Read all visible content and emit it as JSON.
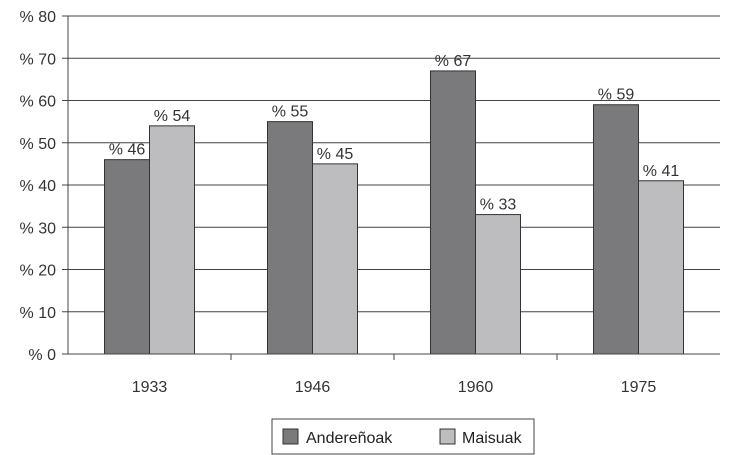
{
  "chart_data": {
    "type": "bar",
    "categories": [
      "1933",
      "1946",
      "1960",
      "1975"
    ],
    "series": [
      {
        "name": "Andereñoak",
        "values": [
          46,
          55,
          67,
          59
        ],
        "labels": [
          "% 46",
          "% 55",
          "% 67",
          "% 59"
        ],
        "color": "#7a7a7c"
      },
      {
        "name": "Maisuak",
        "values": [
          54,
          45,
          33,
          41
        ],
        "labels": [
          "% 54",
          "% 45",
          "% 33",
          "% 41"
        ],
        "color": "#bdbdbf"
      }
    ],
    "yticks": [
      0,
      10,
      20,
      30,
      40,
      50,
      60,
      70,
      80
    ],
    "ytick_labels": [
      "% 0",
      "% 10",
      "% 20",
      "% 30",
      "% 40",
      "% 50",
      "% 60",
      "% 70",
      "% 80"
    ],
    "ylim": [
      0,
      80
    ],
    "grid": true,
    "legend_position": "bottom",
    "title": "",
    "xlabel": "",
    "ylabel": ""
  }
}
